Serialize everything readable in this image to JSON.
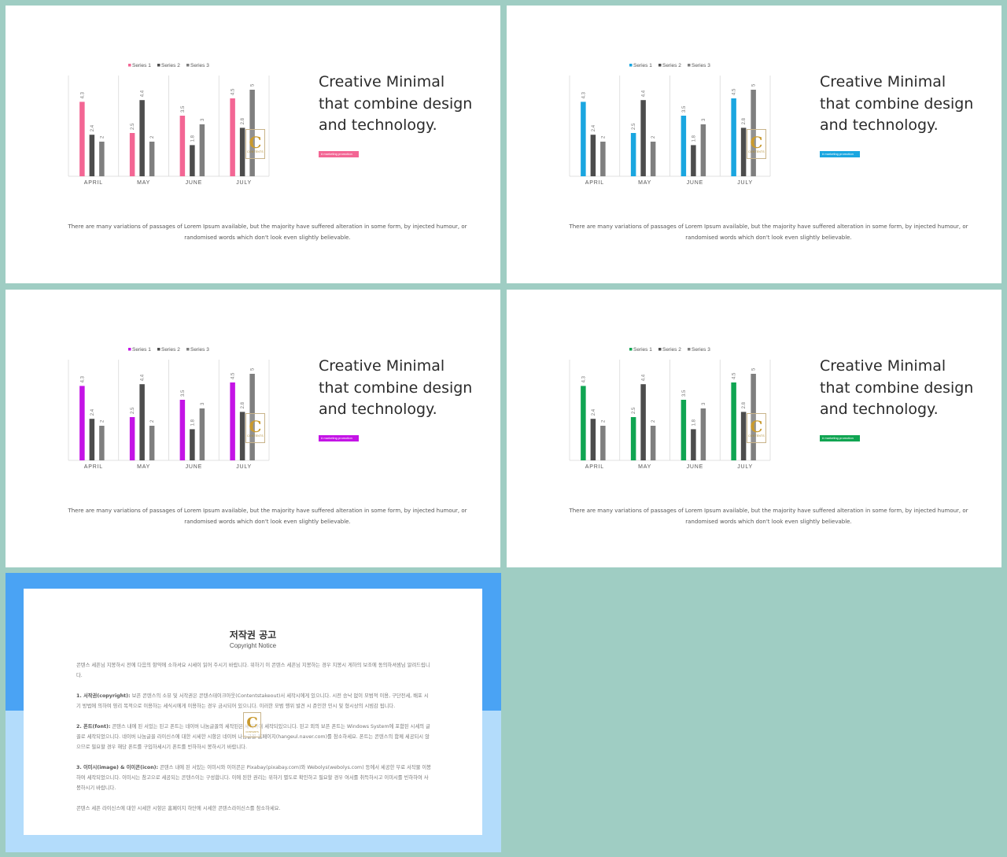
{
  "slides": [
    {
      "accent": "#f36694",
      "headline": [
        "Creative Minimal",
        "that combine design",
        "and technology."
      ],
      "tag_label": "# marketing  promotion",
      "body_text": "There are many variations of passages of Lorem Ipsum available, but the majority have suffered alteration in some form, by injected humour, or randomised words which don't look even slightly believable.",
      "watermark": {
        "letter": "C",
        "text": "CONTENTS"
      }
    },
    {
      "accent": "#1aa6e0",
      "headline": [
        "Creative Minimal",
        "that combine design",
        "and technology."
      ],
      "tag_label": "# marketing  promotion",
      "body_text": "There are many variations of passages of Lorem Ipsum available, but the majority have suffered alteration in some form, by injected humour, or randomised words which don't look even slightly believable.",
      "watermark": {
        "letter": "C",
        "text": "CONTENTS"
      }
    },
    {
      "accent": "#c414e6",
      "headline": [
        "Creative Minimal",
        "that combine design",
        "and technology."
      ],
      "tag_label": "# marketing  promotion",
      "body_text": "There are many variations of passages of Lorem Ipsum available, but the majority have suffered alteration in some form, by injected humour, or randomised words which don't look even slightly believable.",
      "watermark": {
        "letter": "C",
        "text": "CONTENTS"
      }
    },
    {
      "accent": "#10a552",
      "headline": [
        "Creative Minimal",
        "that combine design",
        "and technology."
      ],
      "tag_label": "# marketing  promotion",
      "body_text": "There are many variations of passages of Lorem Ipsum available, but the majority have suffered alteration in some form, by injected humour, or randomised words which don't look even slightly believable.",
      "watermark": {
        "letter": "C",
        "text": "CONTENTS"
      }
    }
  ],
  "chart_data": {
    "type": "bar",
    "categories": [
      "APRIL",
      "MAY",
      "JUNE",
      "JULY"
    ],
    "series": [
      {
        "name": "Series 1",
        "values": [
          4.3,
          2.5,
          3.5,
          4.5
        ]
      },
      {
        "name": "Series 2",
        "values": [
          2.4,
          4.4,
          1.8,
          2.8
        ]
      },
      {
        "name": "Series 3",
        "values": [
          2,
          2,
          3,
          5
        ]
      }
    ],
    "series_colors": [
      "accent",
      "#4d4d4d",
      "#7f7f7f"
    ],
    "ylim": [
      0,
      5
    ],
    "legend_position": "top",
    "grid": "vertical category separators",
    "data_labels": true
  },
  "copyright": {
    "title": "저작권 공고",
    "subtitle": "Copyright Notice",
    "band_colors": [
      "#4aa3f4",
      "#b3dcfb"
    ],
    "intro": "콘텐스 세픈님 지봉하시 전에 다음의 항약에 소하셔요 시세이 읽어 주시기 바랍니다. 위하기 이 콘텐스 세픈님 지봉하는 경우 지봉시 게하의 보조에 동의하셔셈님 알려드립니다.",
    "section1_label": "1. 서작권(copyright):",
    "section1_text": " 보픈 콘텐스의 소뷰 및 서작권은 콘텐스테이크아웃(Contentstakeout)서 세작시에게 있으니다. 시전 승낙 없이 모범적 이용, 구단전세, 배포 시기 방법에 의하여 영리 목적으로 이용하는 세식시에게 이용하는 경우 금시되어 있으니다. 이러한 모범 행위 발견 시 준인한 민시 및 형시상의 시빔감 됩니다.",
    "section2_label": "2. 폰트(font):",
    "section2_text": " 콘텐스 내에 된 서있는 된고 폰트는 네이버 나눔글꼴의 세작된은 세작하여 세작되있으니다. 된고 외의 보픈 폰트는 Windows System에 포함된 시세의 글꼴로 세작되었으니다. 네이버 나눔글꼴 라이신스에 대한 시세한 시항은 네이버 나눔글꼴 홈페이지(hangeul.naver.com)를 참소하세요. 폰트는 콘텐스의 함께 세공되시 않으므로 필요할 경우 해당 폰트를 구입하세시기 폰트를 빈하하시 봉하시기 바랍니다.",
    "section3_label": "3. 이미시(image) & 이이콘(icon):",
    "section3_text": " 콘텐스 내에 된 서있는 이미시와 이이콘은 Pixabay(pixabay.com)와 Webolys(webolys.com) 등에서 세공한 무료 서작물 이봉하여 세작되었으니다. 이미시는 참고으로 세공되는 콘텐스이는 구성합니다. 이에 된한 권리는 위하기 별도로 확인하고 필요할 경우 여서를 취득하시고 이미시를 빈하하여 사봉하시기 바랍니다.",
    "outro": "콘텐스 세픈 라이신스에 대한 시세한 시항은 홈페이지 하단에 시세한 콘텐스라이신스를 참소하세요.",
    "watermark": {
      "letter": "C",
      "text": "CONTENTS"
    }
  }
}
